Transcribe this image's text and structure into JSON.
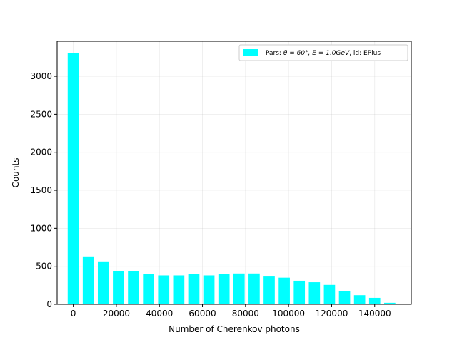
{
  "chart_data": {
    "type": "bar",
    "xlabel": "Number of Cherenkov photons",
    "ylabel": "Counts",
    "xlim": [
      -7500,
      157000
    ],
    "ylim": [
      0,
      3460
    ],
    "bar_width": 5200,
    "bar_color": "#00ffff",
    "grid": true,
    "legend": {
      "placement": "top-right",
      "label_prefix": "Pars: ",
      "label_math": "θ = 60°, E = 1.0GeV",
      "label_suffix": ", id: EPlus"
    },
    "x_ticks": [
      0,
      20000,
      40000,
      60000,
      80000,
      100000,
      120000,
      140000
    ],
    "y_ticks": [
      0,
      500,
      1000,
      1500,
      2000,
      2500,
      3000
    ],
    "x": [
      0,
      7000,
      14000,
      21000,
      28000,
      35000,
      42000,
      49000,
      56000,
      63000,
      70000,
      77000,
      84000,
      91000,
      98000,
      105000,
      112000,
      119000,
      126000,
      133000,
      140000,
      147000
    ],
    "values": [
      3310,
      630,
      555,
      435,
      440,
      395,
      380,
      380,
      395,
      380,
      395,
      405,
      405,
      365,
      350,
      310,
      290,
      255,
      170,
      120,
      85,
      20
    ]
  }
}
